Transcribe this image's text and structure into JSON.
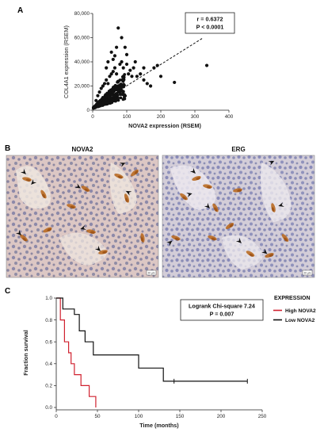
{
  "panel_labels": {
    "a": "A",
    "b": "B",
    "c": "C"
  },
  "colors": {
    "tissue_nuclei": "#6a6fa8",
    "stain_brown": "#b8691f",
    "background_tissue": "#d9c6c3",
    "km_high": "#d0212f",
    "km_low": "#111111"
  },
  "chart_data": [
    {
      "type": "scatter",
      "xlabel": "NOVA2 expression (RSEM)",
      "ylabel": "COL4A1 expression (RSEM)",
      "xlim": [
        0,
        400
      ],
      "ylim": [
        0,
        80000
      ],
      "xticks": [
        "0",
        "100",
        "200",
        "300",
        "400"
      ],
      "yticks": [
        "0",
        "20,000",
        "40,000",
        "60,000",
        "80,000"
      ],
      "annotation": [
        "r = 0.6372",
        "P < 0.0001"
      ],
      "trendline": {
        "x": [
          0,
          325
        ],
        "y": [
          2500,
          60000
        ],
        "style": "dashed"
      },
      "points": [
        [
          10,
          8000
        ],
        [
          15,
          12000
        ],
        [
          20,
          15000
        ],
        [
          25,
          18000
        ],
        [
          30,
          20000
        ],
        [
          35,
          22000
        ],
        [
          40,
          25000
        ],
        [
          45,
          22000
        ],
        [
          50,
          28000
        ],
        [
          55,
          30000
        ],
        [
          60,
          32000
        ],
        [
          65,
          35000
        ],
        [
          70,
          30000
        ],
        [
          80,
          38000
        ],
        [
          85,
          40000
        ],
        [
          90,
          35000
        ],
        [
          100,
          38000
        ],
        [
          105,
          30000
        ],
        [
          110,
          33000
        ],
        [
          120,
          35000
        ],
        [
          130,
          28000
        ],
        [
          140,
          30000
        ],
        [
          150,
          25000
        ],
        [
          160,
          22000
        ],
        [
          170,
          20000
        ],
        [
          180,
          35000
        ],
        [
          190,
          37000
        ],
        [
          200,
          28000
        ],
        [
          240,
          23000
        ],
        [
          335,
          37000
        ],
        [
          75,
          68000
        ],
        [
          70,
          52000
        ],
        [
          55,
          48000
        ],
        [
          95,
          52000
        ],
        [
          85,
          60000
        ],
        [
          100,
          46000
        ],
        [
          60,
          42000
        ],
        [
          65,
          45000
        ],
        [
          45,
          40000
        ],
        [
          40,
          35000
        ],
        [
          125,
          40000
        ],
        [
          150,
          35000
        ],
        [
          115,
          28000
        ],
        [
          90,
          28000
        ]
      ]
    },
    {
      "type": "line",
      "subtype": "kaplan-meier",
      "title": "Logrank Chi-square 7.24",
      "subtitle": "P = 0.007",
      "xlabel": "Time (months)",
      "ylabel": "Fraction survival",
      "xlim": [
        0,
        250
      ],
      "ylim": [
        0,
        1.0
      ],
      "xticks": [
        "0",
        "50",
        "100",
        "150",
        "200",
        "250"
      ],
      "yticks": [
        "0.0",
        "0.2",
        "0.4",
        "0.6",
        "0.8",
        "1.0"
      ],
      "legend_title": "EXPRESSION",
      "legend_placement": "right",
      "series": [
        {
          "name": "High NOVA2",
          "color": "#d0212f",
          "steps": [
            [
              0,
              1.0
            ],
            [
              5,
              0.8
            ],
            [
              10,
              0.6
            ],
            [
              15,
              0.5
            ],
            [
              18,
              0.4
            ],
            [
              22,
              0.3
            ],
            [
              30,
              0.2
            ],
            [
              40,
              0.1
            ],
            [
              48,
              0.0
            ]
          ]
        },
        {
          "name": "Low NOVA2",
          "color": "#111111",
          "steps": [
            [
              0,
              1.0
            ],
            [
              8,
              0.9
            ],
            [
              22,
              0.85
            ],
            [
              28,
              0.7
            ],
            [
              35,
              0.6
            ],
            [
              45,
              0.48
            ],
            [
              100,
              0.36
            ],
            [
              130,
              0.24
            ],
            [
              232,
              0.24
            ]
          ],
          "censor_marks": [
            [
              143,
              0.24
            ],
            [
              232,
              0.24
            ]
          ]
        }
      ]
    }
  ],
  "micrographs": [
    {
      "title": "NOVA2",
      "scale_label": "20 µm"
    },
    {
      "title": "ERG",
      "scale_label": "20 µm"
    }
  ]
}
